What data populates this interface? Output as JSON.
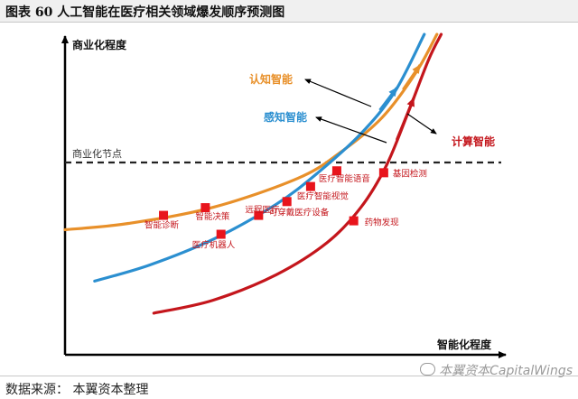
{
  "header": {
    "title": "图表 60 人工智能在医疗相关领域爆发顺序预测图"
  },
  "footer": {
    "source": "数据来源：   本翼资本整理",
    "watermark": "本翼资本CapitalWings"
  },
  "colors": {
    "cognitive": "#e8902a",
    "perception": "#2b8fd0",
    "computing": "#c4161c",
    "marker": "#e8141c",
    "axis": "#000000",
    "text_red": "#c4161c",
    "text_orange": "#e8902a",
    "text_blue": "#2b8fd0"
  },
  "chart_data": {
    "type": "line",
    "title": "",
    "xlabel": "智能化程度",
    "ylabel": "商业化程度",
    "threshold": {
      "label": "商业化节点",
      "y": 60
    },
    "xlim": [
      0,
      100
    ],
    "ylim": [
      0,
      100
    ],
    "series": [
      {
        "key": "cognitive",
        "name": "认知智能",
        "points": [
          [
            0,
            39
          ],
          [
            15,
            41
          ],
          [
            35,
            46
          ],
          [
            55,
            55
          ],
          [
            65,
            63
          ],
          [
            75,
            74
          ],
          [
            83,
            88
          ],
          [
            88,
            100
          ]
        ]
      },
      {
        "key": "perception",
        "name": "感知智能",
        "points": [
          [
            7,
            23
          ],
          [
            20,
            28
          ],
          [
            35,
            36
          ],
          [
            50,
            47
          ],
          [
            60,
            57
          ],
          [
            70,
            69
          ],
          [
            78,
            82
          ],
          [
            85,
            100
          ]
        ]
      },
      {
        "key": "computing",
        "name": "计算智能",
        "points": [
          [
            21,
            13
          ],
          [
            35,
            17
          ],
          [
            50,
            25
          ],
          [
            62,
            35
          ],
          [
            70,
            46
          ],
          [
            76,
            59
          ],
          [
            81,
            75
          ],
          [
            86,
            92
          ],
          [
            89,
            100
          ]
        ]
      }
    ],
    "markers": [
      {
        "label": "智能诊断",
        "x": 23.3,
        "y": 43.5
      },
      {
        "label": "智能决策",
        "x": 33.2,
        "y": 45.9
      },
      {
        "label": "医疗机器人",
        "x": 36.9,
        "y": 37.6
      },
      {
        "label": "远程医疗",
        "x": 45.8,
        "y": 43.5
      },
      {
        "label": "可穿戴医疗设备",
        "x": 52.5,
        "y": 47.8
      },
      {
        "label": "医疗智能视觉",
        "x": 58.1,
        "y": 52.5
      },
      {
        "label": "医疗智能语音",
        "x": 64.3,
        "y": 57.4
      },
      {
        "label": "药物发现",
        "x": 68.3,
        "y": 41.8
      },
      {
        "label": "基因检测",
        "x": 75.4,
        "y": 56.8
      }
    ]
  }
}
